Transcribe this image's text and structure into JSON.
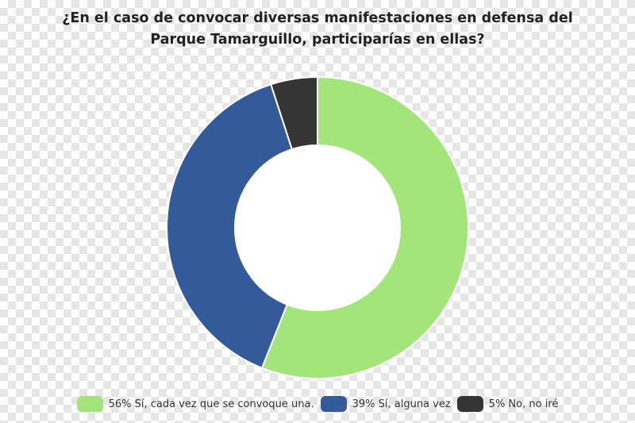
{
  "chart_data": {
    "type": "pie",
    "donut": true,
    "title_lines": [
      "¿En el caso de convocar diversas manifestaciones en defensa del",
      "Parque Tamarguillo, participarías en ellas?"
    ],
    "slices": [
      {
        "label": "56% Sí, cada vez que se convoque una.",
        "value": 56,
        "color": "#a3e57a"
      },
      {
        "label": "39% Sí, alguna vez",
        "value": 39,
        "color": "#355a99"
      },
      {
        "label": "5% No, no iré",
        "value": 5,
        "color": "#353535"
      }
    ],
    "start_angle": "12 o'clock",
    "direction": "clockwise",
    "legend_position": "bottom"
  }
}
